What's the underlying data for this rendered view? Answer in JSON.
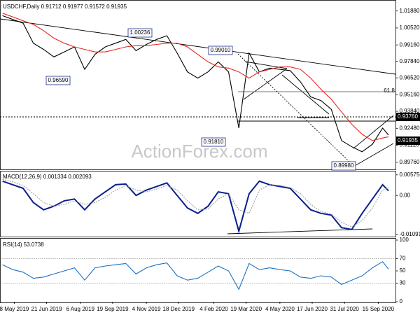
{
  "chart_data": [
    {
      "type": "line",
      "title": "USDCHF,Daily  0.91712 0.91977 0.91572 0.91935",
      "x": [
        "2019-04-22",
        "2019-05-06",
        "2019-05-20",
        "2019-06-03",
        "2019-06-17",
        "2019-07-01",
        "2019-07-15",
        "2019-07-29",
        "2019-08-12",
        "2019-08-26",
        "2019-09-09",
        "2019-09-23",
        "2019-10-07",
        "2019-10-21",
        "2019-11-04",
        "2019-11-18",
        "2019-12-02",
        "2019-12-16",
        "2019-12-30",
        "2020-01-13",
        "2020-01-27",
        "2020-02-10",
        "2020-02-24",
        "2020-03-09",
        "2020-03-23",
        "2020-04-06",
        "2020-04-20",
        "2020-05-04",
        "2020-05-18",
        "2020-06-01",
        "2020-06-15",
        "2020-06-29",
        "2020-07-13",
        "2020-07-27",
        "2020-08-10",
        "2020-08-24",
        "2020-09-07",
        "2020-09-21",
        "2020-09-29"
      ],
      "series": [
        {
          "color": "#000000",
          "values": [
            1.015,
            1.012,
            1.009,
            0.993,
            0.988,
            0.982,
            0.986,
            0.99,
            0.972,
            0.984,
            0.99,
            0.993,
            0.996,
            0.987,
            0.992,
            0.996,
            0.999,
            0.985,
            0.97,
            0.965,
            0.97,
            0.978,
            0.97,
            0.925,
            0.985,
            0.97,
            0.973,
            0.972,
            0.971,
            0.962,
            0.95,
            0.947,
            0.94,
            0.915,
            0.91,
            0.906,
            0.912,
            0.925,
            0.9194
          ]
        },
        {
          "color": "#e8261e",
          "values": [
            1.017,
            1.014,
            1.011,
            1.008,
            1.003,
            0.997,
            0.993,
            0.99,
            0.988,
            0.986,
            0.986,
            0.988,
            0.99,
            0.991,
            0.991,
            0.992,
            0.993,
            0.993,
            0.99,
            0.984,
            0.978,
            0.974,
            0.973,
            0.97,
            0.965,
            0.97,
            0.972,
            0.974,
            0.974,
            0.972,
            0.965,
            0.956,
            0.948,
            0.938,
            0.928,
            0.92,
            0.915,
            0.917,
            0.918
          ]
        }
      ],
      "xlim": [
        "2019-04-19",
        "2020-10-09"
      ],
      "ylim": [
        0.893,
        1.0259
      ],
      "yticks": [
        {
          "value": 1.0188,
          "label": "1.01880"
        },
        {
          "value": 1.0052,
          "label": "1.00520"
        },
        {
          "value": 0.9916,
          "label": "0.99160"
        },
        {
          "value": 0.9784,
          "label": "0.97840"
        },
        {
          "value": 0.9652,
          "label": "0.96520"
        },
        {
          "value": 0.9516,
          "label": "0.95160"
        },
        {
          "value": 0.9384,
          "label": "0.93840"
        },
        {
          "value": 0.9248,
          "label": "0.92480"
        },
        {
          "value": 0.9112,
          "label": "0.91120"
        },
        {
          "value": 0.8976,
          "label": "0.89760"
        }
      ],
      "annotations": [
        "1.00236",
        "0.99010",
        "0.96590",
        "0.91810",
        "0.89980",
        "61.8"
      ],
      "price_labels": [
        "0.93760",
        "0.91935"
      ],
      "watermark": "ActionForex.com"
    },
    {
      "type": "line",
      "title": "MACD(12,26,9) 0.001334 0.002093",
      "x": [
        "2019-04-22",
        "2019-05-06",
        "2019-05-20",
        "2019-06-03",
        "2019-06-17",
        "2019-07-01",
        "2019-07-15",
        "2019-07-29",
        "2019-08-12",
        "2019-08-26",
        "2019-09-09",
        "2019-09-23",
        "2019-10-07",
        "2019-10-21",
        "2019-11-04",
        "2019-11-18",
        "2019-12-02",
        "2019-12-16",
        "2019-12-30",
        "2020-01-13",
        "2020-01-27",
        "2020-02-10",
        "2020-02-24",
        "2020-03-09",
        "2020-03-23",
        "2020-04-06",
        "2020-04-20",
        "2020-05-04",
        "2020-05-18",
        "2020-06-01",
        "2020-06-15",
        "2020-06-29",
        "2020-07-13",
        "2020-07-27",
        "2020-08-10",
        "2020-08-24",
        "2020-09-07",
        "2020-09-21",
        "2020-09-29"
      ],
      "series": [
        {
          "color": "#0a1f8f",
          "values": [
            0.004,
            0.003,
            0.002,
            -0.002,
            -0.004,
            -0.003,
            -0.0015,
            -0.001,
            -0.004,
            -0.001,
            0.001,
            0.003,
            0.0032,
            0,
            0.0015,
            0.0025,
            0.0035,
            0,
            -0.0035,
            -0.005,
            -0.003,
            0.001,
            0.0005,
            -0.01,
            0.0005,
            0.004,
            0.003,
            0.0025,
            0.002,
            -0.001,
            -0.004,
            -0.005,
            -0.0055,
            -0.009,
            -0.0095,
            -0.005,
            -0.001,
            0.003,
            0.0013
          ]
        },
        {
          "color": "#a0a0a0",
          "values": [
            0.0045,
            0.0038,
            0.0028,
            0.0005,
            -0.002,
            -0.003,
            -0.0025,
            -0.0015,
            -0.0025,
            -0.002,
            -0.0005,
            0.0015,
            0.0028,
            0.0015,
            0.001,
            0.0018,
            0.0028,
            0.0015,
            -0.0015,
            -0.004,
            -0.0038,
            -0.001,
            0.0005,
            -0.004,
            -0.005,
            0.0015,
            0.003,
            0.0028,
            0.0022,
            0.0005,
            -0.0025,
            -0.0045,
            -0.0052,
            -0.0075,
            -0.0088,
            -0.007,
            -0.0035,
            0.0015,
            0.0021
          ]
        }
      ],
      "xlim": [
        "2019-04-19",
        "2020-10-09"
      ],
      "ylim": [
        -0.0115,
        0.0065
      ],
      "yticks": [
        0.005756,
        {
          "value": 0,
          "label": "0.00"
        },
        -0.010912
      ]
    },
    {
      "type": "line",
      "title": "RSI(14) 53.0738",
      "x": [
        "2019-04-22",
        "2019-05-06",
        "2019-05-20",
        "2019-06-03",
        "2019-06-17",
        "2019-07-01",
        "2019-07-15",
        "2019-07-29",
        "2019-08-12",
        "2019-08-26",
        "2019-09-09",
        "2019-09-23",
        "2019-10-07",
        "2019-10-21",
        "2019-11-04",
        "2019-11-18",
        "2019-12-02",
        "2019-12-16",
        "2019-12-30",
        "2020-01-13",
        "2020-01-27",
        "2020-02-10",
        "2020-02-24",
        "2020-03-09",
        "2020-03-23",
        "2020-04-06",
        "2020-04-20",
        "2020-05-04",
        "2020-05-18",
        "2020-06-01",
        "2020-06-15",
        "2020-06-29",
        "2020-07-13",
        "2020-07-27",
        "2020-08-10",
        "2020-08-24",
        "2020-09-07",
        "2020-09-21",
        "2020-09-29"
      ],
      "series": [
        {
          "color": "#1c6fc4",
          "values": [
            60,
            52,
            48,
            38,
            40,
            45,
            50,
            55,
            35,
            55,
            58,
            60,
            62,
            45,
            55,
            60,
            63,
            42,
            35,
            38,
            48,
            58,
            50,
            20,
            62,
            52,
            55,
            52,
            50,
            40,
            38,
            42,
            40,
            28,
            35,
            42,
            55,
            65,
            53
          ]
        }
      ],
      "xlim": [
        "2019-04-19",
        "2020-10-09"
      ],
      "ylim": [
        0,
        100
      ],
      "yticks": [
        100,
        70,
        50,
        30,
        0
      ],
      "levels": [
        70,
        30
      ],
      "xticks": [
        {
          "value": "2019-05-08",
          "label": "8 May 2019"
        },
        {
          "value": "2019-06-21",
          "label": "21 Jun 2019"
        },
        {
          "value": "2019-08-06",
          "label": "6 Aug 2019"
        },
        {
          "value": "2019-09-19",
          "label": "19 Sep 2019"
        },
        {
          "value": "2019-11-04",
          "label": "4 Nov 2019"
        },
        {
          "value": "2019-12-18",
          "label": "18 Dec 2019"
        },
        {
          "value": "2020-02-04",
          "label": "4 Feb 2020"
        },
        {
          "value": "2020-03-19",
          "label": "19 Mar 2020"
        },
        {
          "value": "2020-05-04",
          "label": "4 May 2020"
        },
        {
          "value": "2020-06-17",
          "label": "17 Jun 2020"
        },
        {
          "value": "2020-07-31",
          "label": "31 Jul 2020"
        },
        {
          "value": "2020-09-15",
          "label": "15 Sep 2020"
        }
      ]
    }
  ]
}
